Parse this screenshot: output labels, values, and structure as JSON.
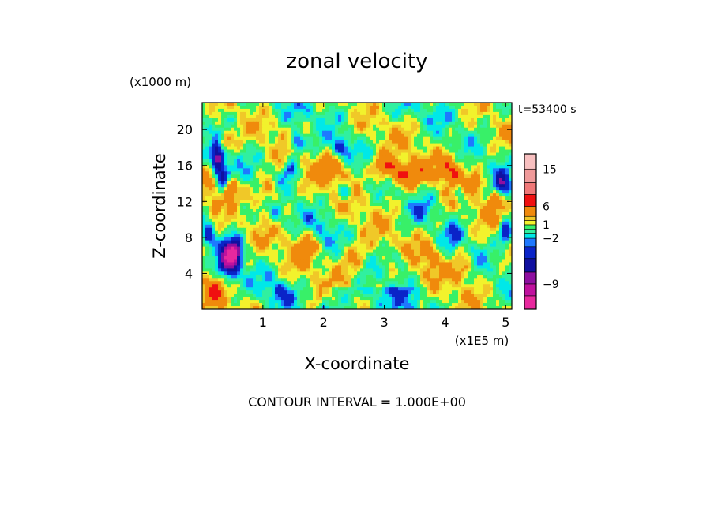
{
  "chart_data": {
    "type": "heatmap",
    "title": "zonal velocity",
    "xlabel": "X-coordinate",
    "ylabel": "Z-coordinate",
    "x_unit": "(x1E5 m)",
    "y_unit": "(x1000 m)",
    "time_label": "t=53400 s",
    "footer": "CONTOUR INTERVAL = 1.000E+00",
    "xlim": [
      0,
      5.1
    ],
    "ylim": [
      0,
      23
    ],
    "x_ticks": [
      1,
      2,
      3,
      4,
      5
    ],
    "y_ticks": [
      4,
      8,
      12,
      16,
      20
    ],
    "x_tick_labels": [
      "1",
      "2",
      "3",
      "4",
      "5"
    ],
    "y_tick_labels": [
      "4",
      "8",
      "12",
      "16",
      "20"
    ],
    "colorbar": {
      "levels": [
        -14,
        -11,
        -9,
        -7,
        -5,
        -3,
        -2,
        -1,
        0,
        1,
        2,
        3,
        6,
        9,
        12,
        15,
        18
      ],
      "colors": [
        "#e8289e",
        "#c0119e",
        "#8e0fa0",
        "#1010a0",
        "#0a24c8",
        "#1e78ff",
        "#00e8e8",
        "#30f0a0",
        "#38f068",
        "#f2f22c",
        "#f0c828",
        "#f08a0c",
        "#f01010",
        "#f07878",
        "#f09a9a",
        "#f8c0c0"
      ],
      "tick_values": [
        15,
        6,
        1,
        -2,
        -9
      ],
      "tick_labels": [
        "15",
        "6",
        "1",
        "−2",
        "−9"
      ]
    }
  }
}
